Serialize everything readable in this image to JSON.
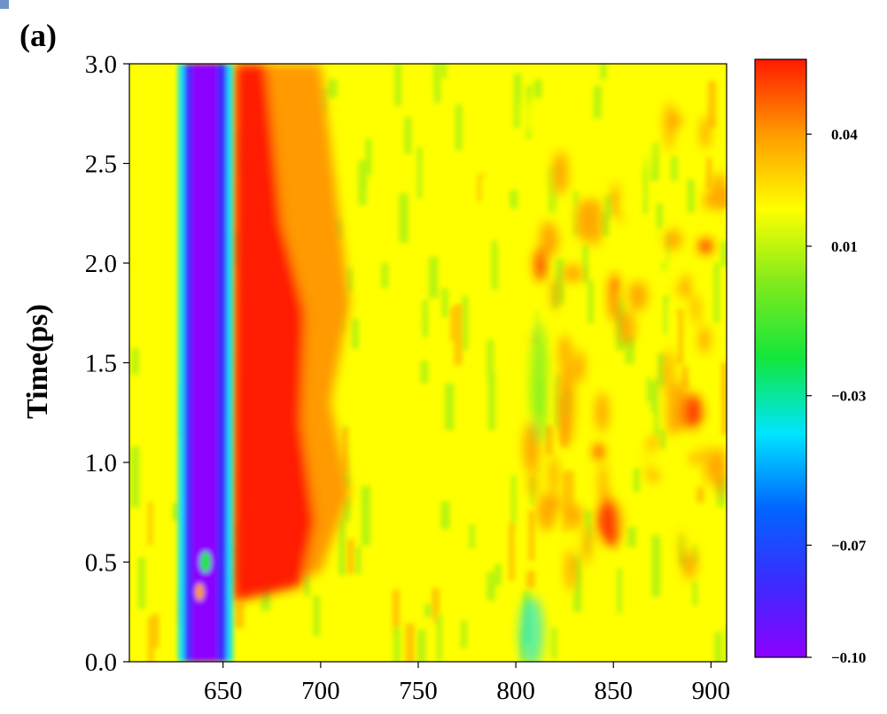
{
  "chart_data": {
    "type": "heatmap",
    "panel_label": "(a)",
    "title": "",
    "xlabel": "",
    "ylabel": "Time(ps)",
    "xlim": [
      602,
      908
    ],
    "ylim": [
      0.0,
      3.0
    ],
    "xticks": [
      650,
      700,
      750,
      800,
      850,
      900
    ],
    "xtick_labels": [
      "650",
      "700",
      "750",
      "800",
      "850",
      "900"
    ],
    "yticks": [
      0.0,
      0.5,
      1.0,
      1.5,
      2.0,
      2.5,
      3.0
    ],
    "ytick_labels": [
      "0.0",
      "0.5",
      "1.0",
      "1.5",
      "2.0",
      "2.5",
      "3.0"
    ],
    "colorbar": {
      "vmin": -0.1,
      "vmax": 0.06,
      "ticks": [
        0.04,
        0.01,
        -0.03,
        -0.07,
        -0.1
      ],
      "tick_labels": [
        "0.04",
        "0.01",
        "−0.03",
        "−0.07",
        "−0.10"
      ],
      "colormap": [
        "#8b00ff",
        "#3b2bff",
        "#0066ff",
        "#00e5ff",
        "#12e63c",
        "#7fea1c",
        "#ffff00",
        "#ff9a00",
        "#ff1a00"
      ]
    },
    "features": [
      {
        "kind": "bleach",
        "x_range": [
          631,
          652
        ],
        "y_range": [
          0.0,
          3.0
        ],
        "value": -0.095
      },
      {
        "kind": "absorption",
        "x_range": [
          652,
          700
        ],
        "y_range": [
          0.3,
          3.0
        ],
        "value": 0.055
      },
      {
        "kind": "absorption",
        "x_range": [
          800,
          900
        ],
        "y_range": [
          0.45,
          2.6
        ],
        "value": 0.03
      }
    ]
  }
}
